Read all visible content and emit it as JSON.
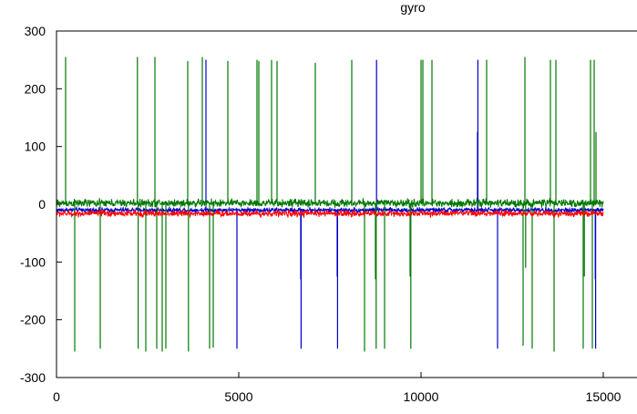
{
  "chart_data": {
    "type": "line",
    "title": "gyro",
    "xlabel": "",
    "ylabel": "",
    "xlim": [
      0,
      16500
    ],
    "ylim": [
      -300,
      300
    ],
    "x_ticks": [
      0,
      5000,
      10000,
      15000
    ],
    "y_ticks": [
      -300,
      -200,
      -100,
      0,
      100,
      200,
      300
    ],
    "x_tick_labels": [
      "0",
      "5000",
      "10000",
      "15000"
    ],
    "y_tick_labels": [
      "-300",
      "-200",
      "-100",
      "0",
      "100",
      "200",
      "300"
    ],
    "grid": false,
    "legend": "none",
    "n_samples": 15000,
    "series": [
      {
        "color": "#0000cc",
        "baseline": -10,
        "noise_amplitude": 6,
        "spikes": [
          {
            "x": 4100,
            "y": 250
          },
          {
            "x": 4950,
            "y": -250
          },
          {
            "x": 6700,
            "y": -130
          },
          {
            "x": 6710,
            "y": -250
          },
          {
            "x": 7700,
            "y": -125
          },
          {
            "x": 7710,
            "y": -250
          },
          {
            "x": 8780,
            "y": 250
          },
          {
            "x": 11550,
            "y": 125
          },
          {
            "x": 11560,
            "y": 250
          },
          {
            "x": 12100,
            "y": -250
          },
          {
            "x": 14780,
            "y": -130
          },
          {
            "x": 14790,
            "y": -250
          }
        ]
      },
      {
        "color": "#007700",
        "baseline": 2,
        "noise_amplitude": 10,
        "spikes": [
          {
            "x": 250,
            "y": 255
          },
          {
            "x": 500,
            "y": -255
          },
          {
            "x": 1200,
            "y": -250
          },
          {
            "x": 2220,
            "y": 255
          },
          {
            "x": 2240,
            "y": -250
          },
          {
            "x": 2450,
            "y": -255
          },
          {
            "x": 2700,
            "y": 255
          },
          {
            "x": 2750,
            "y": -250
          },
          {
            "x": 2900,
            "y": -255
          },
          {
            "x": 3000,
            "y": -250
          },
          {
            "x": 3600,
            "y": 248
          },
          {
            "x": 3620,
            "y": -255
          },
          {
            "x": 4000,
            "y": 255
          },
          {
            "x": 4200,
            "y": -250
          },
          {
            "x": 4300,
            "y": -248
          },
          {
            "x": 4700,
            "y": 248
          },
          {
            "x": 5500,
            "y": 250
          },
          {
            "x": 5550,
            "y": 248
          },
          {
            "x": 5900,
            "y": 250
          },
          {
            "x": 6050,
            "y": 248
          },
          {
            "x": 7100,
            "y": 245
          },
          {
            "x": 8100,
            "y": 250
          },
          {
            "x": 8450,
            "y": -255
          },
          {
            "x": 8750,
            "y": -130
          },
          {
            "x": 8770,
            "y": -250
          },
          {
            "x": 9000,
            "y": -250
          },
          {
            "x": 9700,
            "y": -125
          },
          {
            "x": 9720,
            "y": -250
          },
          {
            "x": 10000,
            "y": 250
          },
          {
            "x": 10050,
            "y": 250
          },
          {
            "x": 10300,
            "y": 250
          },
          {
            "x": 11800,
            "y": 250
          },
          {
            "x": 12800,
            "y": -245
          },
          {
            "x": 12850,
            "y": 255
          },
          {
            "x": 12870,
            "y": -110
          },
          {
            "x": 13050,
            "y": -250
          },
          {
            "x": 13550,
            "y": 250
          },
          {
            "x": 13650,
            "y": -255
          },
          {
            "x": 13700,
            "y": 250
          },
          {
            "x": 14450,
            "y": -250
          },
          {
            "x": 14480,
            "y": -125
          },
          {
            "x": 14650,
            "y": 250
          },
          {
            "x": 14700,
            "y": -250
          },
          {
            "x": 14750,
            "y": 250
          },
          {
            "x": 14800,
            "y": 125
          }
        ]
      },
      {
        "color": "#ff0000",
        "baseline": -16,
        "noise_amplitude": 8,
        "spikes": []
      }
    ]
  }
}
